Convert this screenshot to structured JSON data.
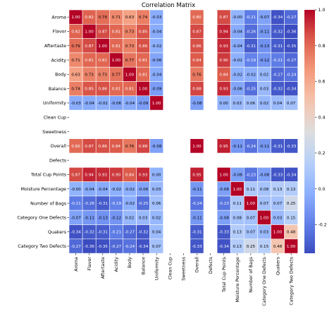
{
  "chart_data": {
    "type": "heatmap",
    "title": "Correlation Matrix",
    "labels": [
      "Aroma",
      "Flavor",
      "Aftertaste",
      "Acidity",
      "Body",
      "Balance",
      "Uniformity",
      "Clean Cup",
      "Sweetness",
      "Overall",
      "Defects",
      "Total Cup Points",
      "Moisture Percentage",
      "Number of Bags",
      "Category One Defects",
      "Quakers",
      "Category Two Defects"
    ],
    "values": [
      [
        1.0,
        0.82,
        0.79,
        0.71,
        0.63,
        0.74,
        -0.03,
        null,
        null,
        0.8,
        null,
        0.87,
        -0.0,
        -0.21,
        -0.07,
        -0.34,
        -0.27
      ],
      [
        0.82,
        1.0,
        0.87,
        0.81,
        0.73,
        0.85,
        -0.04,
        null,
        null,
        0.87,
        null,
        0.94,
        -0.04,
        -0.26,
        -0.11,
        -0.32,
        -0.36
      ],
      [
        0.79,
        0.87,
        1.0,
        0.81,
        0.73,
        0.86,
        -0.02,
        null,
        null,
        0.86,
        null,
        0.93,
        -0.04,
        -0.31,
        -0.13,
        -0.31,
        -0.35
      ],
      [
        0.71,
        0.81,
        0.81,
        1.0,
        0.77,
        0.81,
        -0.06,
        null,
        null,
        0.84,
        null,
        0.9,
        -0.02,
        -0.19,
        -0.12,
        -0.21,
        -0.27
      ],
      [
        0.63,
        0.73,
        0.73,
        0.77,
        1.0,
        0.81,
        -0.04,
        null,
        null,
        0.76,
        null,
        0.84,
        -0.02,
        -0.02,
        0.02,
        -0.27,
        -0.24
      ],
      [
        0.74,
        0.85,
        0.86,
        0.81,
        0.81,
        1.0,
        -0.09,
        null,
        null,
        0.88,
        null,
        0.93,
        -0.06,
        -0.25,
        0.03,
        -0.32,
        -0.34
      ],
      [
        -0.03,
        -0.04,
        -0.02,
        -0.06,
        -0.04,
        -0.09,
        1.0,
        null,
        null,
        -0.08,
        null,
        0.0,
        0.03,
        0.06,
        0.02,
        0.04,
        0.07
      ],
      [
        null,
        null,
        null,
        null,
        null,
        null,
        null,
        null,
        null,
        null,
        null,
        null,
        null,
        null,
        null,
        null,
        null
      ],
      [
        null,
        null,
        null,
        null,
        null,
        null,
        null,
        null,
        null,
        null,
        null,
        null,
        null,
        null,
        null,
        null,
        null
      ],
      [
        0.8,
        0.87,
        0.86,
        0.84,
        0.76,
        0.88,
        -0.08,
        null,
        null,
        1.0,
        null,
        0.95,
        -0.11,
        -0.24,
        -0.11,
        -0.31,
        -0.33
      ],
      [
        null,
        null,
        null,
        null,
        null,
        null,
        null,
        null,
        null,
        null,
        null,
        null,
        null,
        null,
        null,
        null,
        null
      ],
      [
        0.87,
        0.94,
        0.93,
        0.9,
        0.84,
        0.93,
        0.0,
        null,
        null,
        0.95,
        null,
        1.0,
        -0.08,
        -0.23,
        -0.08,
        -0.33,
        -0.34
      ],
      [
        -0.0,
        -0.04,
        -0.04,
        -0.02,
        -0.02,
        -0.06,
        0.03,
        null,
        null,
        -0.11,
        null,
        -0.08,
        1.0,
        0.11,
        0.08,
        0.13,
        0.13
      ],
      [
        -0.21,
        -0.26,
        -0.31,
        -0.19,
        -0.02,
        -0.25,
        0.06,
        null,
        null,
        -0.24,
        null,
        -0.23,
        0.11,
        1.0,
        0.07,
        0.07,
        0.25
      ],
      [
        -0.07,
        -0.11,
        -0.13,
        -0.12,
        0.02,
        0.03,
        0.02,
        null,
        null,
        -0.11,
        null,
        -0.08,
        0.08,
        0.07,
        1.0,
        0.03,
        0.15
      ],
      [
        -0.34,
        -0.32,
        -0.31,
        -0.21,
        -0.27,
        -0.32,
        0.04,
        null,
        null,
        -0.31,
        null,
        -0.33,
        0.13,
        0.07,
        0.03,
        1.0,
        0.48
      ],
      [
        -0.27,
        -0.36,
        -0.35,
        -0.27,
        -0.24,
        -0.34,
        0.07,
        null,
        null,
        -0.33,
        null,
        -0.34,
        0.13,
        0.25,
        0.15,
        0.48,
        1.0
      ]
    ],
    "colormap": "coolwarm",
    "vmin": -0.36,
    "vmax": 1.0,
    "colorbar_ticks": [
      "1.0",
      "0.8",
      "0.6",
      "0.4",
      "0.2",
      "0.0",
      "-0.2"
    ],
    "legend": "colorbar-right",
    "grid": false
  }
}
